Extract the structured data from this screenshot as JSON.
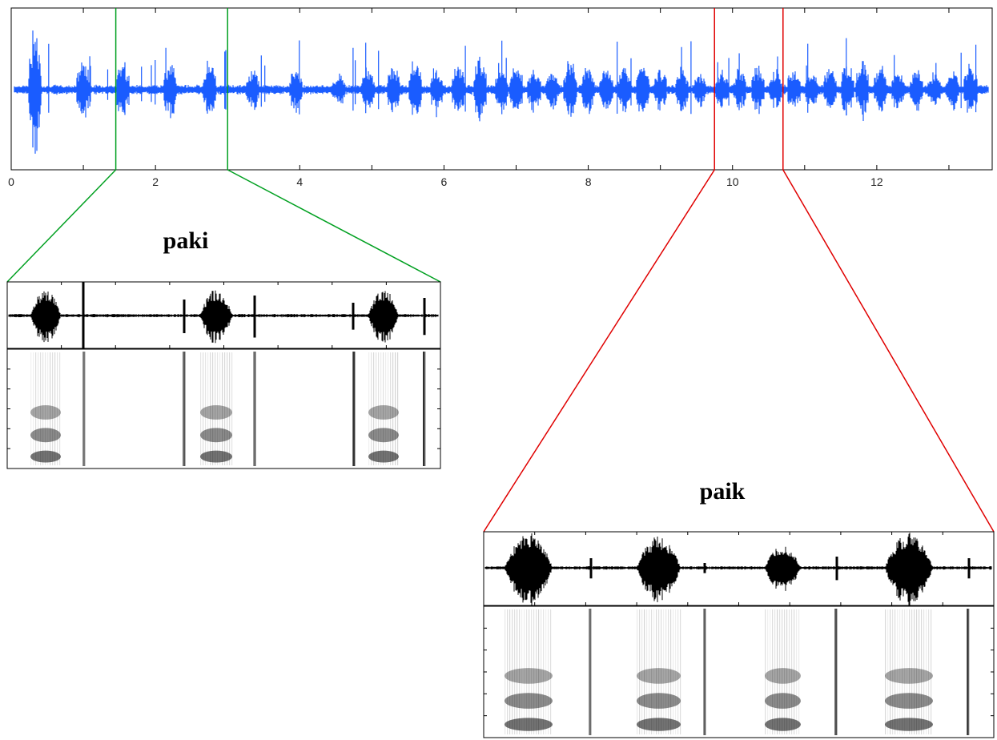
{
  "main_waveform": {
    "color": "#1a5cff",
    "x_tick_labels": [
      "0",
      "2",
      "4",
      "6",
      "8",
      "10",
      "12"
    ],
    "x_ticks": [
      0,
      2,
      4,
      6,
      8,
      10,
      12
    ],
    "x_range": [
      0,
      13.6
    ]
  },
  "segments": [
    {
      "word": "paki",
      "color": "#00a020",
      "start": 1.45,
      "end": 3.0
    },
    {
      "word": "paik",
      "color": "#e00000",
      "start": 9.75,
      "end": 10.7
    }
  ]
}
